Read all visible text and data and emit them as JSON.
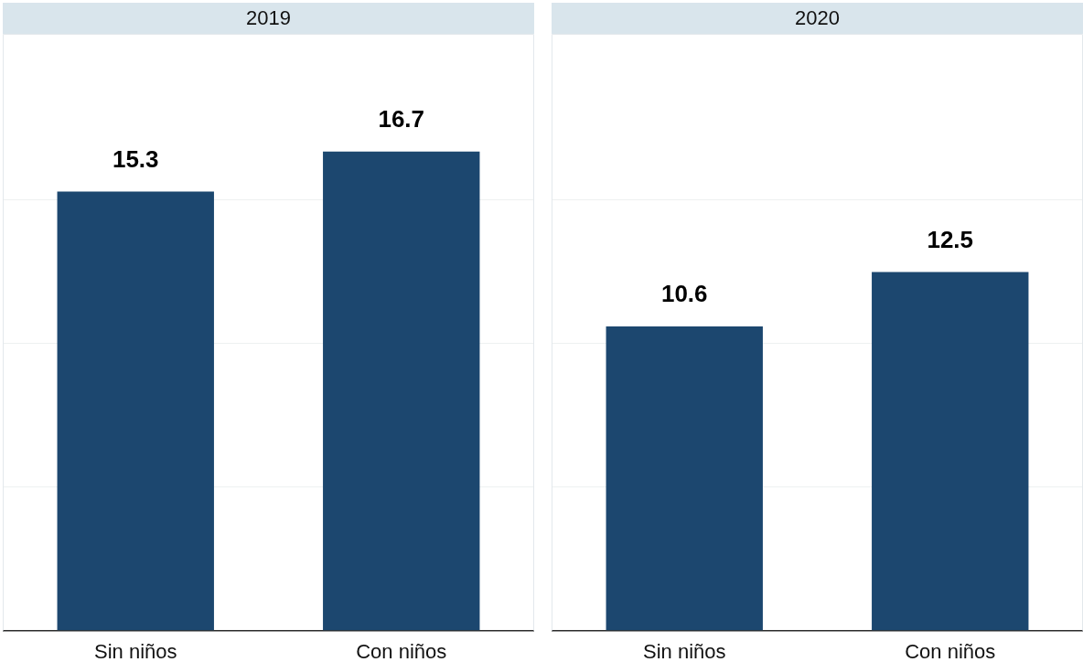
{
  "chart_data": [
    {
      "type": "bar",
      "title": "2019",
      "categories": [
        "Sin niños",
        "Con niños"
      ],
      "values": [
        15.3,
        16.7
      ],
      "color": "#1c476f",
      "ylim": [
        0,
        20.8
      ],
      "yticks": [
        {
          "value": 5,
          "label": null
        },
        {
          "value": 10,
          "label": null
        },
        {
          "value": 15,
          "label": null
        }
      ],
      "grid": "y",
      "tick_labels": "x",
      "data_labels": true
    },
    {
      "type": "bar",
      "title": "2020",
      "categories": [
        "Sin niños",
        "Con niños"
      ],
      "values": [
        10.6,
        12.5
      ],
      "color": "#1c476f",
      "ylim": [
        0,
        20.8
      ],
      "yticks": [
        {
          "value": 5,
          "label": null
        },
        {
          "value": 10,
          "label": null
        },
        {
          "value": 15,
          "label": null
        }
      ],
      "grid": "y",
      "tick_labels": "x",
      "data_labels": true
    }
  ]
}
